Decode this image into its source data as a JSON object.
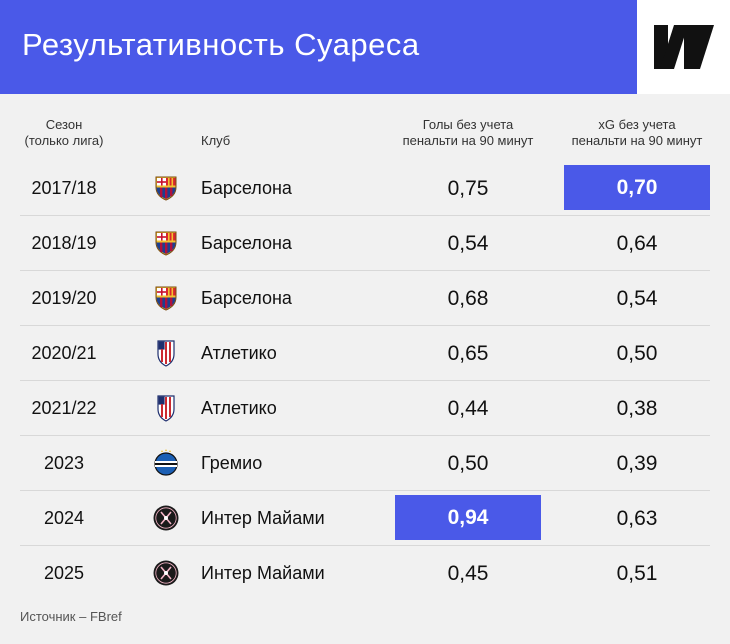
{
  "title": "Результативность Суареса",
  "headers": {
    "season_line1": "Сезон",
    "season_line2": "(только лига)",
    "club": "Клуб",
    "goals_line1": "Голы без учета",
    "goals_line2": "пенальти на 90 минут",
    "xg_line1": "xG без учета",
    "xg_line2": "пенальти на 90 минут"
  },
  "source": "Источник – FBref",
  "colors": {
    "accent": "#4a59e8",
    "background": "#f1f1f1",
    "barcelona_blue": "#1d3f8f",
    "barcelona_red": "#b0113c",
    "atletico_red": "#cb2a31",
    "gremio_blue": "#1b5fb4",
    "inter_miami_black": "#1a1a1a",
    "inter_miami_pink": "#f4b4c6"
  },
  "chart_data": {
    "type": "table",
    "columns": [
      "Сезон (только лига)",
      "Клуб",
      "Голы без учета пенальти на 90 минут",
      "xG без учета пенальти на 90 минут"
    ],
    "rows": [
      {
        "season": "2017/18",
        "club": "Барселона",
        "crest": "barcelona-crest-icon",
        "goals": "0,75",
        "xg": "0,70",
        "highlight": "xg"
      },
      {
        "season": "2018/19",
        "club": "Барселона",
        "crest": "barcelona-crest-icon",
        "goals": "0,54",
        "xg": "0,64",
        "highlight": ""
      },
      {
        "season": "2019/20",
        "club": "Барселона",
        "crest": "barcelona-crest-icon",
        "goals": "0,68",
        "xg": "0,54",
        "highlight": ""
      },
      {
        "season": "2020/21",
        "club": "Атлетико",
        "crest": "atletico-crest-icon",
        "goals": "0,65",
        "xg": "0,50",
        "highlight": ""
      },
      {
        "season": "2021/22",
        "club": "Атлетико",
        "crest": "atletico-crest-icon",
        "goals": "0,44",
        "xg": "0,38",
        "highlight": ""
      },
      {
        "season": "2023",
        "club": "Гремио",
        "crest": "gremio-crest-icon",
        "goals": "0,50",
        "xg": "0,39",
        "highlight": ""
      },
      {
        "season": "2024",
        "club": "Интер Майами",
        "crest": "inter-miami-crest-icon",
        "goals": "0,94",
        "xg": "0,63",
        "highlight": "goals"
      },
      {
        "season": "2025",
        "club": "Интер Майами",
        "crest": "inter-miami-crest-icon",
        "goals": "0,45",
        "xg": "0,51",
        "highlight": ""
      }
    ]
  }
}
